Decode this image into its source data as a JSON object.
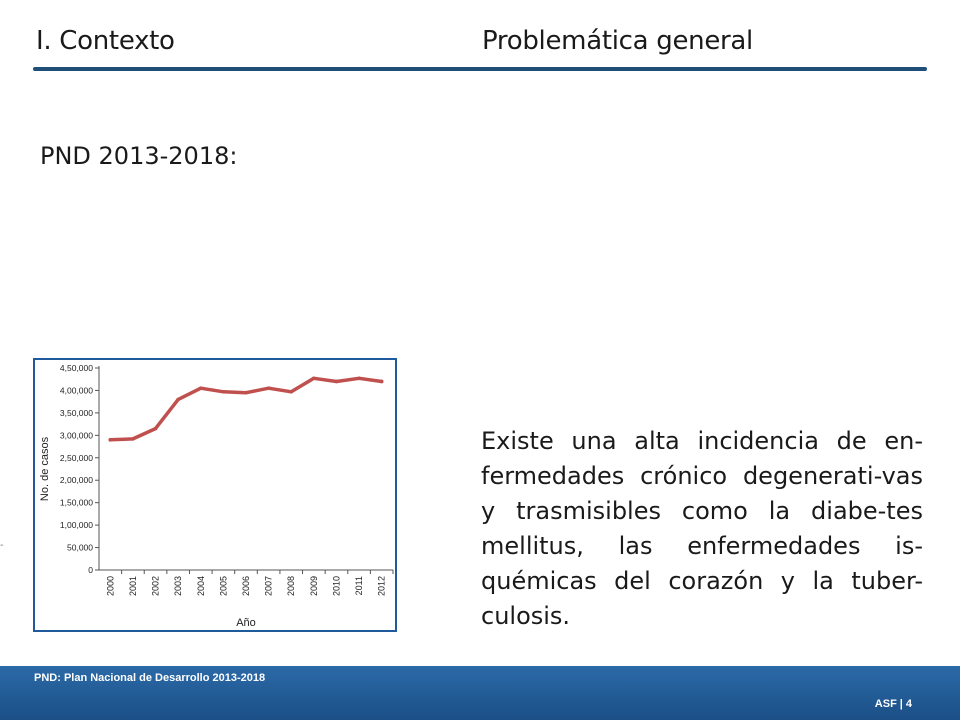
{
  "header": {
    "section": "I. Contexto",
    "topic": "Problemática general"
  },
  "subtitle": "PND 2013-2018:",
  "body_text": "Existe una alta incidencia de en-fermedades crónico degenerati-vas y trasmisibles como la diabe-tes mellitus, las enfermedades is-quémicas del corazón y la tuber-culosis.",
  "stray_mark": "-",
  "footer": {
    "note": "PND: Plan Nacional de Desarrollo 2013-2018",
    "org": "ASF",
    "separator": "|",
    "page": "4"
  },
  "colors": {
    "line": "#c0504d",
    "frame": "#1f5a9c",
    "footer": "#1f5a9c",
    "rule": "#1f4e79"
  },
  "chart_data": {
    "type": "line",
    "title": "",
    "xlabel": "Año",
    "ylabel": "No. de casos",
    "categories": [
      "2000",
      "2001",
      "2002",
      "2003",
      "2004",
      "2005",
      "2006",
      "2007",
      "2008",
      "2009",
      "2010",
      "2011",
      "2012"
    ],
    "series": [
      {
        "values": [
          290000,
          292000,
          315000,
          380000,
          405000,
          397000,
          395000,
          405000,
          397000,
          427000,
          420000,
          427000,
          420000
        ]
      }
    ],
    "yticks": [
      0,
      50000,
      100000,
      150000,
      200000,
      250000,
      300000,
      350000,
      400000,
      450000
    ],
    "ytick_labels": [
      "0",
      "50,000",
      "1,00,000",
      "1,50,000",
      "2,00,000",
      "2,50,000",
      "3,00,000",
      "3,50,000",
      "4,00,000",
      "4,50,000"
    ],
    "ylim": [
      0,
      450000
    ],
    "grid": false,
    "legend": "none"
  }
}
